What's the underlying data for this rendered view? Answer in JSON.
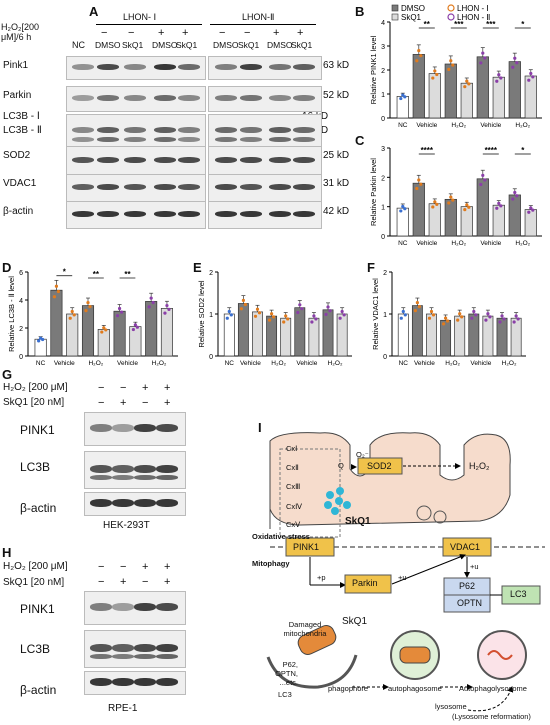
{
  "panelA": {
    "label": "A",
    "treatment_label": "H₂O₂[200 μM]/6 h",
    "group_labels": [
      "LHON- Ⅰ",
      "LHON-Ⅱ"
    ],
    "nc_label": "NC",
    "h2o2_row": [
      "−",
      "−",
      "+",
      "+",
      "−",
      "−",
      "+",
      "+"
    ],
    "agent_row": [
      "DMSO",
      "SkQ1",
      "DMSO",
      "SkQ1",
      "DMSO",
      "SkQ1",
      "DMSO",
      "SkQ1"
    ],
    "proteins": [
      "Pink1",
      "Parkin",
      "LC3B - Ⅰ",
      "LC3B - Ⅱ",
      "SOD2",
      "VDAC1",
      "β-actin"
    ],
    "sizes": [
      "63 kD",
      "52 kD",
      "16 kD",
      "14 kD",
      "25 kD",
      "31 kD",
      "42 kD"
    ]
  },
  "legend": {
    "dmso": "DMSO",
    "skq1": "SkQ1",
    "lhon1": "LHON - Ⅰ",
    "lhon2": "LHON - Ⅱ"
  },
  "x_labels": {
    "nc": "NC",
    "vehicle": "Vehicle",
    "h2o2": "H₂O₂"
  },
  "colors": {
    "nc": "#ffffff",
    "dmso": "#7a7a7a",
    "skq1": "#dcdcdc",
    "lhon1": "#e07b1e",
    "lhon2": "#8a3fa8",
    "nc_dots": "#3a6fd0"
  },
  "chart_data": [
    {
      "panel": "B",
      "type": "bar",
      "ylabel": "Relative PINK1 level",
      "ylim": [
        0,
        4
      ],
      "yticks": [
        0,
        1,
        2,
        3,
        4
      ],
      "categories": [
        "NC",
        "LHON-Ⅰ Vehicle DMSO",
        "LHON-Ⅰ Vehicle SkQ1",
        "LHON-Ⅰ H₂O₂ DMSO",
        "LHON-Ⅰ H₂O₂ SkQ1",
        "LHON-Ⅱ Vehicle DMSO",
        "LHON-Ⅱ Vehicle SkQ1",
        "LHON-Ⅱ H₂O₂ DMSO",
        "LHON-Ⅱ H₂O₂ SkQ1"
      ],
      "values": [
        0.9,
        2.65,
        1.85,
        2.25,
        1.45,
        2.55,
        1.7,
        2.35,
        1.75
      ],
      "sig": [
        {
          "pair": [
            1,
            2
          ],
          "label": "**"
        },
        {
          "pair": [
            3,
            4
          ],
          "label": "***"
        },
        {
          "pair": [
            5,
            6
          ],
          "label": "***"
        },
        {
          "pair": [
            7,
            8
          ],
          "label": "*"
        }
      ]
    },
    {
      "panel": "C",
      "type": "bar",
      "ylabel": "Relative Parkin level",
      "ylim": [
        0,
        3
      ],
      "yticks": [
        0,
        1,
        2,
        3
      ],
      "categories": [
        "NC",
        "LHON-Ⅰ Vehicle DMSO",
        "LHON-Ⅰ Vehicle SkQ1",
        "LHON-Ⅰ H₂O₂ DMSO",
        "LHON-Ⅰ H₂O₂ SkQ1",
        "LHON-Ⅱ Vehicle DMSO",
        "LHON-Ⅱ Vehicle SkQ1",
        "LHON-Ⅱ H₂O₂ DMSO",
        "LHON-Ⅱ H₂O₂ SkQ1"
      ],
      "values": [
        0.95,
        1.8,
        1.1,
        1.25,
        1.0,
        1.95,
        1.05,
        1.4,
        0.9
      ],
      "sig": [
        {
          "pair": [
            1,
            2
          ],
          "label": "****"
        },
        {
          "pair": [
            5,
            6
          ],
          "label": "****"
        },
        {
          "pair": [
            7,
            8
          ],
          "label": "*"
        }
      ]
    },
    {
      "panel": "D",
      "type": "bar",
      "ylabel": "Relative LC3B - Ⅱ level",
      "ylim": [
        0,
        6
      ],
      "yticks": [
        0,
        2,
        4,
        6
      ],
      "categories": [
        "NC",
        "LHON-Ⅰ Vehicle DMSO",
        "LHON-Ⅰ Vehicle SkQ1",
        "LHON-Ⅰ H₂O₂ DMSO",
        "LHON-Ⅰ H₂O₂ SkQ1",
        "LHON-Ⅱ Vehicle DMSO",
        "LHON-Ⅱ Vehicle SkQ1",
        "LHON-Ⅱ H₂O₂ DMSO",
        "LHON-Ⅱ H₂O₂ SkQ1"
      ],
      "values": [
        1.2,
        4.7,
        3.0,
        3.6,
        1.9,
        3.2,
        2.1,
        3.9,
        3.4
      ],
      "sig": [
        {
          "pair": [
            1,
            2
          ],
          "label": "*"
        },
        {
          "pair": [
            3,
            4
          ],
          "label": "**"
        },
        {
          "pair": [
            5,
            6
          ],
          "label": "**"
        }
      ]
    },
    {
      "panel": "E",
      "type": "bar",
      "ylabel": "Relative SOD2 level",
      "ylim": [
        0,
        2
      ],
      "yticks": [
        0,
        1,
        2
      ],
      "categories": [
        "NC",
        "LHON-Ⅰ Vehicle DMSO",
        "LHON-Ⅰ Vehicle SkQ1",
        "LHON-Ⅰ H₂O₂ DMSO",
        "LHON-Ⅰ H₂O₂ SkQ1",
        "LHON-Ⅱ Vehicle DMSO",
        "LHON-Ⅱ Vehicle SkQ1",
        "LHON-Ⅱ H₂O₂ DMSO",
        "LHON-Ⅱ H₂O₂ SkQ1"
      ],
      "values": [
        1.0,
        1.25,
        1.05,
        0.95,
        0.9,
        1.15,
        0.9,
        1.1,
        1.0
      ],
      "sig": []
    },
    {
      "panel": "F",
      "type": "bar",
      "ylabel": "Relative VDAC1 level",
      "ylim": [
        0,
        2
      ],
      "yticks": [
        0,
        1,
        2
      ],
      "categories": [
        "NC",
        "LHON-Ⅰ Vehicle DMSO",
        "LHON-Ⅰ Vehicle SkQ1",
        "LHON-Ⅰ H₂O₂ DMSO",
        "LHON-Ⅰ H₂O₂ SkQ1",
        "LHON-Ⅱ Vehicle DMSO",
        "LHON-Ⅱ Vehicle SkQ1",
        "LHON-Ⅱ H₂O₂ DMSO",
        "LHON-Ⅱ H₂O₂ SkQ1"
      ],
      "values": [
        1.0,
        1.2,
        1.0,
        0.85,
        0.95,
        1.0,
        0.95,
        0.9,
        0.9
      ],
      "sig": []
    }
  ],
  "panelG": {
    "label": "G",
    "rows": [
      "H₂O₂ [200 μM]",
      "SkQ1 [20 nM]"
    ],
    "h2o2": [
      "−",
      "−",
      "+",
      "+"
    ],
    "skq1": [
      "−",
      "+",
      "−",
      "+"
    ],
    "proteins": [
      "PINK1",
      "LC3B",
      "β-actin"
    ],
    "cell_line": "HEK-293T"
  },
  "panelH": {
    "label": "H",
    "rows": [
      "H₂O₂ [200 μM]",
      "SkQ1 [20 nM]"
    ],
    "h2o2": [
      "−",
      "−",
      "+",
      "+"
    ],
    "skq1": [
      "−",
      "+",
      "−",
      "+"
    ],
    "proteins": [
      "PINK1",
      "LC3B",
      "β-actin"
    ],
    "cell_line": "RPE-1"
  },
  "panelI": {
    "label": "I",
    "complexes": [
      "CxⅠ",
      "CxⅡ",
      "CxⅢ",
      "CxⅣ",
      "CxⅤ"
    ],
    "q": "Q",
    "o2": "O₂⁻",
    "sod2": "SOD2",
    "h2o2": "H₂O₂",
    "skq1": "SkQ1",
    "oxidative_stress": "Oxidative stress",
    "mitophagy": "Mitophagy",
    "pink1": "PINK1",
    "vdac1": "VDAC1",
    "parkin": "Parkin",
    "p62": "P62",
    "optn": "OPTN",
    "lc3": "LC3",
    "plus_p": "+p",
    "plus_u1": "+u",
    "plus_u2": "+u",
    "plus_u3": "+u",
    "damaged": "Damaged mitochondria",
    "skq1_2": "SkQ1",
    "p62_list": "P62, OPTN, ...etc.",
    "lc3_2": "LC3",
    "phagophore": "phagophore",
    "autophagosome": "autophagosome",
    "autophagolysosome": "Autophagolysosome",
    "lysosome": "lysosome",
    "reformation": "(Lysosome reformation)"
  }
}
